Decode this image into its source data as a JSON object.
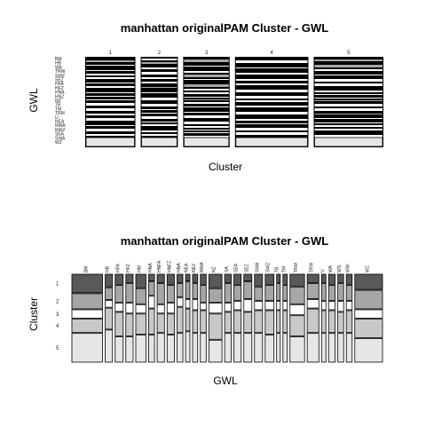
{
  "chart_data": [
    {
      "type": "mosaic",
      "title": "manhattan originalPAM Cluster - GWL",
      "xlabel": "Cluster",
      "ylabel": "GWL",
      "column_labels": [
        "1",
        "2",
        "3",
        "4",
        "5"
      ],
      "column_weights": [
        5.4,
        4.0,
        5.0,
        7.9,
        7.5
      ],
      "row_labels": [
        "BM",
        "HB",
        "WA",
        "TRW",
        "SWZ",
        "SEZ",
        "HFA",
        "HFZ",
        "HNA",
        "HNZ",
        "NZ",
        "TB",
        "TM",
        "TRM",
        "U",
        "NEA",
        "NWA",
        "NWZ",
        "SEA",
        "SWA",
        "WZ"
      ],
      "colors": {
        "dark": "#595959",
        "mid": "#a6a6a6",
        "light": "#e6e6e6",
        "black": "#000000",
        "white": "#ffffff"
      }
    },
    {
      "type": "mosaic",
      "title": "manhattan originalPAM Cluster - GWL",
      "xlabel": "GWL",
      "ylabel": "Cluster",
      "row_labels": [
        "1",
        "2",
        "3",
        "4",
        "5"
      ],
      "column_labels": [
        "BM",
        "HB",
        "HFA",
        "HFZ",
        "HM",
        "HNA",
        "HNFA",
        "HNFZ",
        "HNA",
        "NEA",
        "NEZ",
        "NWA",
        "NZ",
        "SA",
        "SEA",
        "SEZ",
        "SWA",
        "SWZ",
        "TB",
        "TM",
        "TRM",
        "TRW",
        "U",
        "WA",
        "WS",
        "WW",
        "WZ"
      ],
      "column_weights": [
        4.2,
        1.0,
        1.1,
        1.0,
        1.4,
        0.8,
        1.0,
        1.0,
        0.8,
        0.6,
        0.7,
        0.8,
        1.8,
        0.9,
        1.0,
        1.1,
        1.1,
        1.2,
        0.5,
        0.6,
        2.0,
        1.6,
        0.6,
        0.9,
        0.8,
        0.8,
        3.8
      ],
      "column_splits": [
        [
          0.22,
          0.18,
          0.1,
          0.16,
          0.34
        ],
        [
          0.15,
          0.14,
          0.08,
          0.25,
          0.38
        ],
        [
          0.12,
          0.2,
          0.1,
          0.28,
          0.3
        ],
        [
          0.1,
          0.22,
          0.12,
          0.26,
          0.3
        ],
        [
          0.16,
          0.18,
          0.1,
          0.24,
          0.32
        ],
        [
          0.08,
          0.16,
          0.14,
          0.3,
          0.32
        ],
        [
          0.1,
          0.24,
          0.1,
          0.22,
          0.34
        ],
        [
          0.12,
          0.2,
          0.12,
          0.24,
          0.32
        ],
        [
          0.1,
          0.16,
          0.1,
          0.3,
          0.34
        ],
        [
          0.08,
          0.2,
          0.1,
          0.26,
          0.36
        ],
        [
          0.1,
          0.18,
          0.12,
          0.26,
          0.34
        ],
        [
          0.12,
          0.2,
          0.08,
          0.26,
          0.34
        ],
        [
          0.16,
          0.16,
          0.12,
          0.3,
          0.26
        ],
        [
          0.1,
          0.22,
          0.1,
          0.24,
          0.34
        ],
        [
          0.12,
          0.18,
          0.1,
          0.26,
          0.34
        ],
        [
          0.08,
          0.2,
          0.14,
          0.24,
          0.34
        ],
        [
          0.14,
          0.16,
          0.1,
          0.26,
          0.34
        ],
        [
          0.12,
          0.18,
          0.1,
          0.28,
          0.32
        ],
        [
          0.1,
          0.2,
          0.1,
          0.26,
          0.34
        ],
        [
          0.12,
          0.18,
          0.1,
          0.26,
          0.34
        ],
        [
          0.14,
          0.2,
          0.12,
          0.24,
          0.3
        ],
        [
          0.1,
          0.18,
          0.1,
          0.28,
          0.34
        ],
        [
          0.1,
          0.2,
          0.1,
          0.26,
          0.34
        ],
        [
          0.12,
          0.18,
          0.1,
          0.26,
          0.34
        ],
        [
          0.1,
          0.2,
          0.12,
          0.24,
          0.34
        ],
        [
          0.12,
          0.18,
          0.1,
          0.26,
          0.34
        ],
        [
          0.18,
          0.22,
          0.1,
          0.22,
          0.28
        ]
      ],
      "row_fills": [
        "#595959",
        "#a6a6a6",
        "#ffffff",
        "#c8c8c8",
        "#e6e6e6"
      ]
    }
  ]
}
